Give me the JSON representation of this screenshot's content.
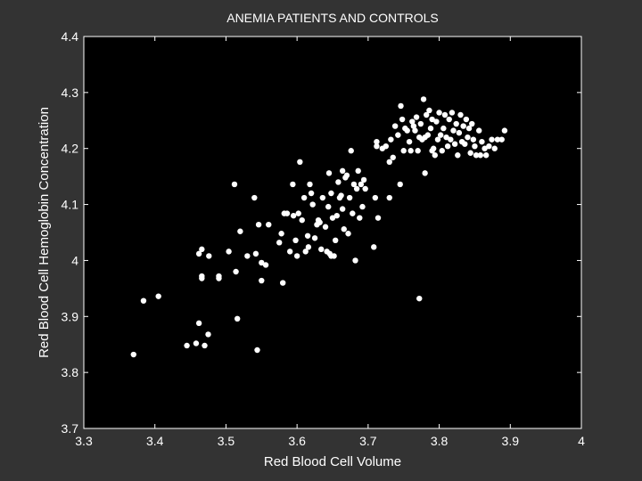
{
  "chart_data": {
    "type": "scatter",
    "title": "ANEMIA PATIENTS AND CONTROLS",
    "xlabel": "Red Blood Cell Volume",
    "ylabel": "Red Blood Cell Hemoglobin Concentration",
    "xlim": [
      3.3,
      4.0
    ],
    "ylim": [
      3.7,
      4.4
    ],
    "xticks": [
      3.3,
      3.4,
      3.5,
      3.6,
      3.7,
      3.8,
      3.9,
      4.0
    ],
    "xtick_labels": [
      "3.3",
      "3.4",
      "3.5",
      "3.6",
      "3.7",
      "3.8",
      "3.9",
      "4"
    ],
    "yticks": [
      3.7,
      3.8,
      3.9,
      4.0,
      4.1,
      4.2,
      4.3,
      4.4
    ],
    "ytick_labels": [
      "3.7",
      "3.8",
      "3.9",
      "4",
      "4.1",
      "4.2",
      "4.3",
      "4.4"
    ],
    "grid": false,
    "colors": {
      "figure_bg": "#333333",
      "axes_bg": "#000000",
      "marker": "#ffffff",
      "text": "#ffffff"
    },
    "points": [
      [
        3.37,
        3.832
      ],
      [
        3.384,
        3.928
      ],
      [
        3.405,
        3.936
      ],
      [
        3.445,
        3.848
      ],
      [
        3.458,
        3.852
      ],
      [
        3.462,
        3.888
      ],
      [
        3.462,
        4.012
      ],
      [
        3.466,
        3.968
      ],
      [
        3.466,
        3.972
      ],
      [
        3.466,
        4.02
      ],
      [
        3.47,
        3.848
      ],
      [
        3.475,
        3.868
      ],
      [
        3.476,
        4.008
      ],
      [
        3.49,
        3.968
      ],
      [
        3.49,
        3.972
      ],
      [
        3.504,
        4.016
      ],
      [
        3.512,
        4.136
      ],
      [
        3.514,
        3.98
      ],
      [
        3.516,
        3.896
      ],
      [
        3.52,
        4.052
      ],
      [
        3.53,
        4.008
      ],
      [
        3.54,
        4.112
      ],
      [
        3.542,
        4.012
      ],
      [
        3.544,
        3.84
      ],
      [
        3.546,
        4.064
      ],
      [
        3.55,
        3.964
      ],
      [
        3.55,
        3.996
      ],
      [
        3.556,
        3.992
      ],
      [
        3.56,
        4.064
      ],
      [
        3.575,
        4.032
      ],
      [
        3.578,
        4.048
      ],
      [
        3.58,
        3.96
      ],
      [
        3.582,
        4.084
      ],
      [
        3.586,
        4.084
      ],
      [
        3.59,
        4.016
      ],
      [
        3.594,
        4.136
      ],
      [
        3.595,
        4.08
      ],
      [
        3.598,
        4.036
      ],
      [
        3.6,
        4.008
      ],
      [
        3.602,
        4.084
      ],
      [
        3.604,
        4.176
      ],
      [
        3.607,
        4.072
      ],
      [
        3.61,
        4.112
      ],
      [
        3.612,
        4.016
      ],
      [
        3.615,
        4.044
      ],
      [
        3.616,
        4.024
      ],
      [
        3.618,
        4.136
      ],
      [
        3.62,
        4.12
      ],
      [
        3.622,
        4.1
      ],
      [
        3.625,
        4.04
      ],
      [
        3.628,
        4.064
      ],
      [
        3.63,
        4.072
      ],
      [
        3.632,
        4.068
      ],
      [
        3.634,
        4.02
      ],
      [
        3.636,
        4.112
      ],
      [
        3.64,
        4.06
      ],
      [
        3.642,
        4.016
      ],
      [
        3.644,
        4.096
      ],
      [
        3.645,
        4.156
      ],
      [
        3.646,
        4.012
      ],
      [
        3.648,
        4.008
      ],
      [
        3.648,
        4.12
      ],
      [
        3.65,
        4.076
      ],
      [
        3.652,
        4.008
      ],
      [
        3.654,
        4.036
      ],
      [
        3.656,
        4.08
      ],
      [
        3.658,
        4.14
      ],
      [
        3.66,
        4.112
      ],
      [
        3.662,
        4.116
      ],
      [
        3.664,
        4.16
      ],
      [
        3.664,
        4.092
      ],
      [
        3.666,
        4.056
      ],
      [
        3.668,
        4.148
      ],
      [
        3.67,
        4.152
      ],
      [
        3.672,
        4.048
      ],
      [
        3.674,
        4.112
      ],
      [
        3.676,
        4.196
      ],
      [
        3.678,
        4.084
      ],
      [
        3.68,
        4.136
      ],
      [
        3.682,
        4.0
      ],
      [
        3.684,
        4.128
      ],
      [
        3.686,
        4.16
      ],
      [
        3.688,
        4.076
      ],
      [
        3.69,
        4.136
      ],
      [
        3.692,
        4.096
      ],
      [
        3.694,
        4.144
      ],
      [
        3.696,
        4.128
      ],
      [
        3.708,
        4.024
      ],
      [
        3.71,
        4.112
      ],
      [
        3.712,
        4.212
      ],
      [
        3.712,
        4.204
      ],
      [
        3.714,
        4.076
      ],
      [
        3.72,
        4.2
      ],
      [
        3.725,
        4.204
      ],
      [
        3.73,
        4.112
      ],
      [
        3.73,
        4.176
      ],
      [
        3.732,
        4.216
      ],
      [
        3.735,
        4.184
      ],
      [
        3.738,
        4.24
      ],
      [
        3.742,
        4.224
      ],
      [
        3.745,
        4.136
      ],
      [
        3.746,
        4.276
      ],
      [
        3.748,
        4.252
      ],
      [
        3.75,
        4.196
      ],
      [
        3.752,
        4.236
      ],
      [
        3.755,
        4.232
      ],
      [
        3.758,
        4.212
      ],
      [
        3.76,
        4.196
      ],
      [
        3.762,
        4.248
      ],
      [
        3.764,
        4.24
      ],
      [
        3.766,
        4.232
      ],
      [
        3.768,
        4.256
      ],
      [
        3.77,
        4.196
      ],
      [
        3.772,
        4.22
      ],
      [
        3.772,
        3.932
      ],
      [
        3.774,
        4.244
      ],
      [
        3.776,
        4.216
      ],
      [
        3.778,
        4.288
      ],
      [
        3.78,
        4.156
      ],
      [
        3.78,
        4.22
      ],
      [
        3.782,
        4.26
      ],
      [
        3.784,
        4.224
      ],
      [
        3.786,
        4.268
      ],
      [
        3.788,
        4.236
      ],
      [
        3.79,
        4.196
      ],
      [
        3.79,
        4.252
      ],
      [
        3.792,
        4.2
      ],
      [
        3.794,
        4.188
      ],
      [
        3.796,
        4.248
      ],
      [
        3.798,
        4.216
      ],
      [
        3.8,
        4.264
      ],
      [
        3.802,
        4.224
      ],
      [
        3.804,
        4.196
      ],
      [
        3.806,
        4.236
      ],
      [
        3.808,
        4.26
      ],
      [
        3.81,
        4.22
      ],
      [
        3.812,
        4.204
      ],
      [
        3.814,
        4.252
      ],
      [
        3.816,
        4.216
      ],
      [
        3.818,
        4.264
      ],
      [
        3.82,
        4.232
      ],
      [
        3.822,
        4.208
      ],
      [
        3.824,
        4.244
      ],
      [
        3.826,
        4.188
      ],
      [
        3.828,
        4.228
      ],
      [
        3.83,
        4.26
      ],
      [
        3.832,
        4.212
      ],
      [
        3.834,
        4.24
      ],
      [
        3.836,
        4.208
      ],
      [
        3.838,
        4.252
      ],
      [
        3.84,
        4.22
      ],
      [
        3.842,
        4.236
      ],
      [
        3.844,
        4.192
      ],
      [
        3.846,
        4.244
      ],
      [
        3.848,
        4.216
      ],
      [
        3.85,
        4.204
      ],
      [
        3.852,
        4.188
      ],
      [
        3.856,
        4.232
      ],
      [
        3.858,
        4.188
      ],
      [
        3.86,
        4.212
      ],
      [
        3.864,
        4.2
      ],
      [
        3.866,
        4.188
      ],
      [
        3.87,
        4.204
      ],
      [
        3.874,
        4.216
      ],
      [
        3.878,
        4.2
      ],
      [
        3.882,
        4.216
      ],
      [
        3.888,
        4.216
      ],
      [
        3.892,
        4.232
      ]
    ]
  }
}
